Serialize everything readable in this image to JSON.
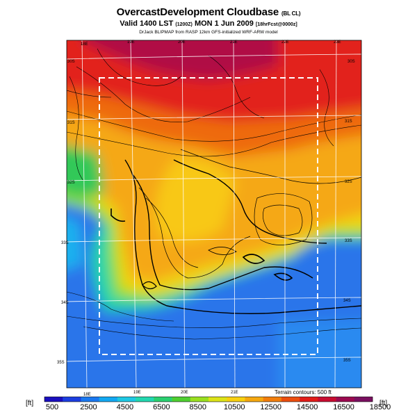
{
  "header": {
    "title": "OvercastDevelopment Cloudbase",
    "title_tag": "(BL CL)",
    "valid_line": "Valid 1400 LST",
    "valid_code": "(1200Z)",
    "valid_date": "MON 1 Jun 2009",
    "forecast_code": "[18hrFcst@0000z]",
    "source_line": "DrJack BLIPMAP from RASP 12km GFS-initialized WRF-ARW model"
  },
  "map": {
    "lon_labels_top": [
      "18E",
      "19E",
      "20E",
      "21E",
      "22E",
      "23E"
    ],
    "lon_labels_bottom": [
      "18E",
      "19E",
      "20E",
      "21E"
    ],
    "lat_labels_left": [
      "30S",
      "31S",
      "32S",
      "33S",
      "34S",
      "35S"
    ],
    "lat_labels_right": [
      "30S",
      "31S",
      "32S",
      "33S",
      "34S",
      "35S"
    ],
    "terrain_note": "Terrain contours: 500 ft"
  },
  "colorbar": {
    "unit_left": "[ft]",
    "unit_right": "[ft]",
    "labels": [
      "500",
      "2500",
      "4500",
      "6500",
      "8500",
      "10500",
      "12500",
      "14500",
      "16500",
      "18500"
    ],
    "colors": [
      "#1a0fbf",
      "#1c3ee0",
      "#1a78f0",
      "#12a8f2",
      "#1ec8e4",
      "#22d8b0",
      "#2ad070",
      "#4fcf30",
      "#9ae020",
      "#dde418",
      "#f8d010",
      "#f6a810",
      "#f27e0c",
      "#ec4e0e",
      "#e21c18",
      "#c80c30",
      "#9c0a50",
      "#7a1060"
    ]
  }
}
